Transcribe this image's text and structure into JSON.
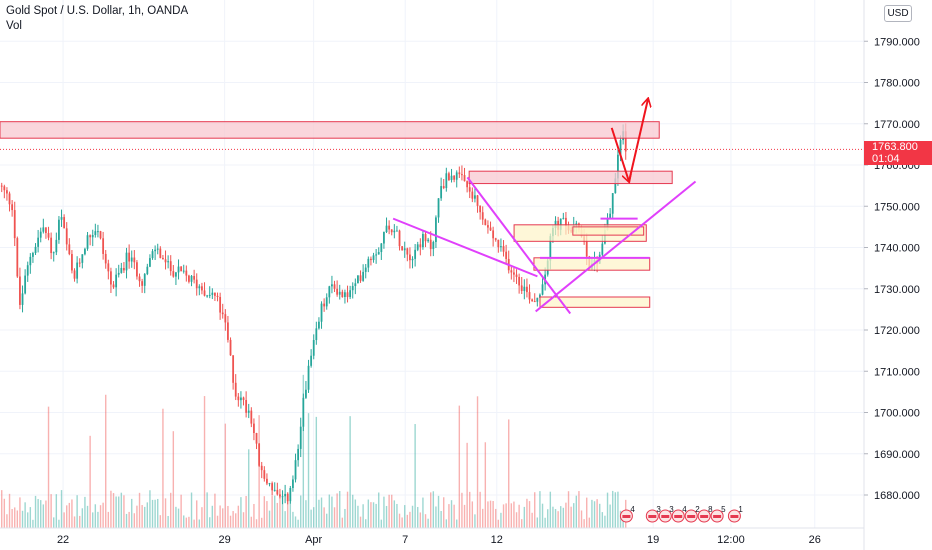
{
  "legend": {
    "symbol_line": "Gold Spot / U.S. Dollar, 1h, OANDA",
    "volume_label": "Vol"
  },
  "currency_button": "USD",
  "last_price": {
    "value": "1763.800",
    "countdown": "01:04",
    "color": "#f23645"
  },
  "colors": {
    "up": "#26a69a",
    "down": "#ef5350",
    "drawing_magenta": "#e040fb",
    "arrow_red": "#f0141e",
    "zone_red_fill": "#f8c8d0",
    "zone_red_stroke": "#e53950",
    "zone_yellow_fill": "#fdf3c8",
    "zone_yellow_stroke": "#e53950"
  },
  "event_icons": [
    "4",
    "3",
    "3",
    "4",
    "2",
    "8",
    "5",
    "1"
  ],
  "chart_data": {
    "type": "candlestick",
    "title": "Gold Spot / U.S. Dollar, 1h, OANDA",
    "ylim": [
      1672,
      1800
    ],
    "y_ticks": [
      "1680.000",
      "1690.000",
      "1700.000",
      "1710.000",
      "1720.000",
      "1730.000",
      "1740.000",
      "1750.000",
      "1760.000",
      "1770.000",
      "1780.000",
      "1790.000"
    ],
    "x_ticks": [
      {
        "label": "22",
        "pos": 0.073
      },
      {
        "label": "29",
        "pos": 0.26
      },
      {
        "label": "Apr",
        "pos": 0.363
      },
      {
        "label": "7",
        "pos": 0.469
      },
      {
        "label": "12",
        "pos": 0.575
      },
      {
        "label": "19",
        "pos": 0.756
      },
      {
        "label": "12:00",
        "pos": 0.846
      },
      {
        "label": "26",
        "pos": 0.943
      }
    ],
    "last_price": 1763.8,
    "price_path": [
      [
        0.0,
        1755
      ],
      [
        0.015,
        1750
      ],
      [
        0.022,
        1725
      ],
      [
        0.035,
        1738
      ],
      [
        0.05,
        1745
      ],
      [
        0.062,
        1738
      ],
      [
        0.07,
        1748
      ],
      [
        0.085,
        1732
      ],
      [
        0.1,
        1742
      ],
      [
        0.112,
        1745
      ],
      [
        0.13,
        1730
      ],
      [
        0.148,
        1738
      ],
      [
        0.165,
        1732
      ],
      [
        0.18,
        1740
      ],
      [
        0.195,
        1735
      ],
      [
        0.215,
        1733
      ],
      [
        0.235,
        1730
      ],
      [
        0.25,
        1728
      ],
      [
        0.262,
        1720
      ],
      [
        0.272,
        1705
      ],
      [
        0.29,
        1700
      ],
      [
        0.302,
        1685
      ],
      [
        0.315,
        1682
      ],
      [
        0.325,
        1678
      ],
      [
        0.335,
        1680
      ],
      [
        0.345,
        1690
      ],
      [
        0.352,
        1705
      ],
      [
        0.362,
        1715
      ],
      [
        0.372,
        1725
      ],
      [
        0.385,
        1731
      ],
      [
        0.398,
        1728
      ],
      [
        0.41,
        1730
      ],
      [
        0.425,
        1737
      ],
      [
        0.438,
        1740
      ],
      [
        0.45,
        1746
      ],
      [
        0.462,
        1742
      ],
      [
        0.475,
        1738
      ],
      [
        0.488,
        1742
      ],
      [
        0.5,
        1740
      ],
      [
        0.51,
        1755
      ],
      [
        0.522,
        1758
      ],
      [
        0.535,
        1756
      ],
      [
        0.548,
        1752
      ],
      [
        0.56,
        1746
      ],
      [
        0.572,
        1742
      ],
      [
        0.585,
        1737
      ],
      [
        0.598,
        1733
      ],
      [
        0.61,
        1729
      ],
      [
        0.62,
        1727
      ],
      [
        0.63,
        1733
      ],
      [
        0.64,
        1745
      ],
      [
        0.652,
        1746
      ],
      [
        0.662,
        1744
      ],
      [
        0.672,
        1745
      ],
      [
        0.682,
        1736
      ],
      [
        0.692,
        1737
      ],
      [
        0.702,
        1746
      ],
      [
        0.708,
        1750
      ],
      [
        0.714,
        1760
      ],
      [
        0.72,
        1769
      ],
      [
        0.725,
        1764
      ]
    ],
    "drawings": {
      "resistance_zones": [
        {
          "y": [
            1766.5,
            1770.5
          ],
          "x": [
            0.0,
            0.763
          ]
        },
        {
          "y": [
            1755.5,
            1758.5
          ],
          "x": [
            0.543,
            0.778
          ]
        }
      ],
      "demand_zones": [
        {
          "y": [
            1741.5,
            1745.5
          ],
          "x": [
            0.595,
            0.748
          ]
        },
        {
          "y": [
            1743.0,
            1745.0
          ],
          "x": [
            0.663,
            0.745
          ]
        },
        {
          "y": [
            1734.5,
            1737.5
          ],
          "x": [
            0.618,
            0.752
          ]
        },
        {
          "y": [
            1725.5,
            1728.0
          ],
          "x": [
            0.625,
            0.752
          ]
        }
      ],
      "trend_lines": [
        {
          "from": [
            0.455,
            1747
          ],
          "to": [
            0.622,
            1733
          ]
        },
        {
          "from": [
            0.541,
            1757
          ],
          "to": [
            0.66,
            1724
          ]
        },
        {
          "from": [
            0.62,
            1724.5
          ],
          "to": [
            0.805,
            1756
          ]
        },
        {
          "from": [
            0.625,
            1737.5
          ],
          "to": [
            0.752,
            1737.5
          ]
        },
        {
          "from": [
            0.695,
            1747
          ],
          "to": [
            0.738,
            1747
          ]
        }
      ],
      "arrows": [
        {
          "path": [
            [
              0.708,
              1769
            ],
            [
              0.728,
              1756
            ],
            [
              0.75,
              1776
            ]
          ],
          "style": "projection"
        }
      ]
    }
  }
}
